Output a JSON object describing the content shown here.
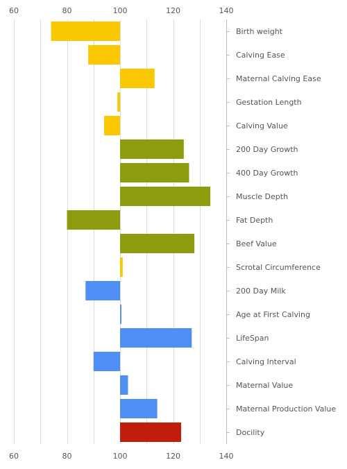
{
  "chart_data": {
    "type": "bar",
    "orientation": "horizontal",
    "title": "",
    "xlabel": "",
    "ylabel": "",
    "xlim": [
      60,
      140
    ],
    "ticks": [
      60,
      80,
      100,
      120,
      140
    ],
    "tick_labels": [
      "60",
      "80",
      "100",
      "120",
      "140"
    ],
    "axis_labels_position": "top-and-bottom",
    "category_labels_position": "right",
    "grid": true,
    "baseline": 100,
    "categories": [
      "Birth weight",
      "Calving Ease",
      "Maternal Calving Ease",
      "Gestation Length",
      "Calving Value",
      "200 Day Growth",
      "400 Day Growth",
      "Muscle Depth",
      "Fat Depth",
      "Beef Value",
      "Scrotal Circumference",
      "200 Day Milk",
      "Age at First Calving",
      "LifeSpan",
      "Calving Interval",
      "Maternal Value",
      "Maternal Production Value",
      "Docility"
    ],
    "values": [
      74,
      88,
      113,
      99,
      94,
      124,
      126,
      134,
      80,
      128,
      101,
      87,
      100.5,
      127,
      90,
      103,
      114,
      123
    ],
    "colors": [
      "#f9c800",
      "#f9c800",
      "#f9c800",
      "#f9c800",
      "#f9c800",
      "#8c9c0c",
      "#8c9c0c",
      "#8c9c0c",
      "#8c9c0c",
      "#8c9c0c",
      "#f9c800",
      "#4f8ff5",
      "#4f8ff5",
      "#4f8ff5",
      "#4f8ff5",
      "#4f8ff5",
      "#4f8ff5",
      "#c21c0c"
    ]
  },
  "style": {
    "grid_color": "#dddddd",
    "axis_color": "#bbbbbb",
    "text_color": "#555555"
  }
}
